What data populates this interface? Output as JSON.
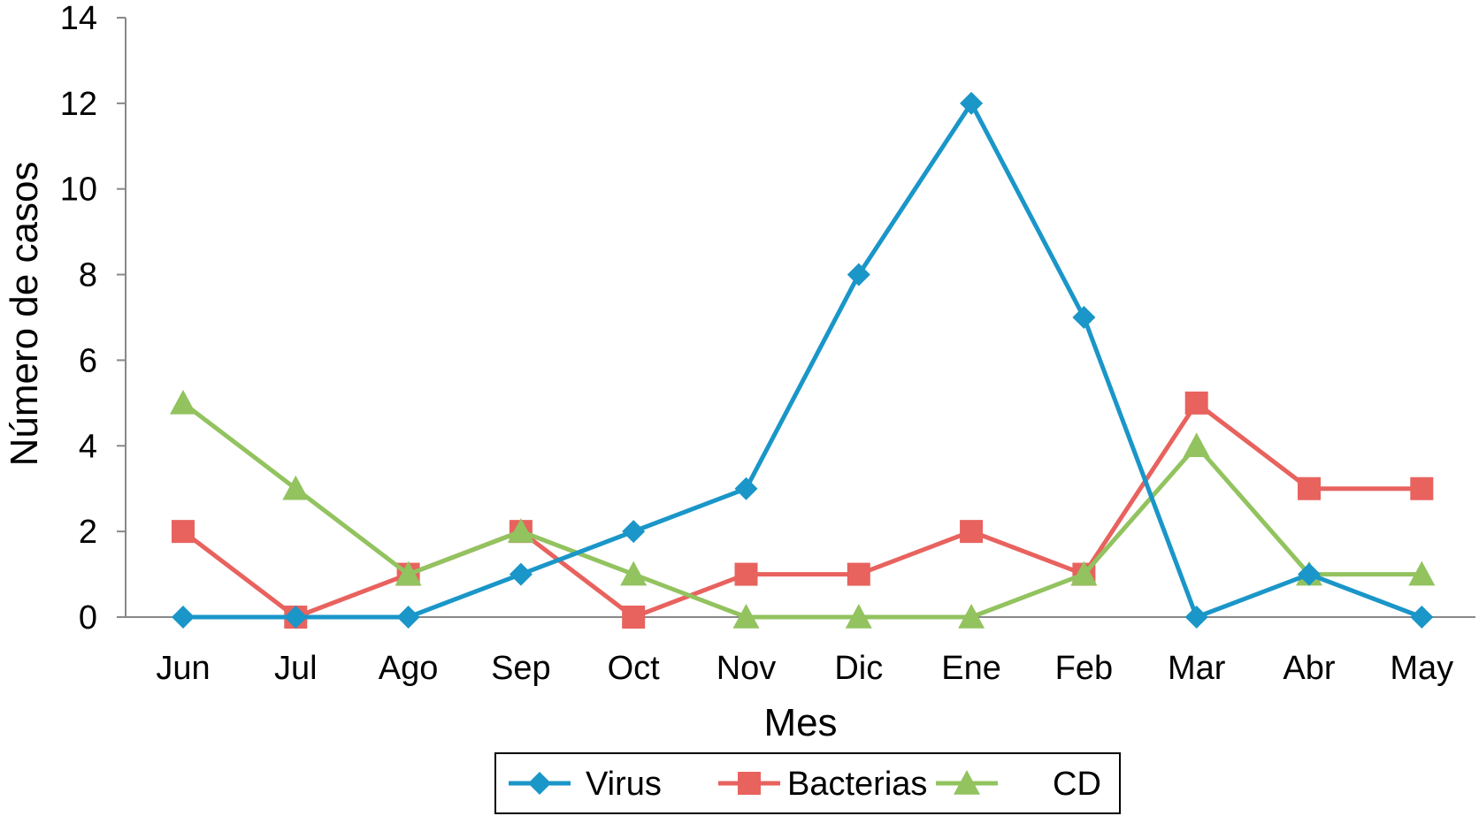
{
  "chart_data": {
    "type": "line",
    "categories": [
      "Jun",
      "Jul",
      "Ago",
      "Sep",
      "Oct",
      "Nov",
      "Dic",
      "Ene",
      "Feb",
      "Mar",
      "Abr",
      "May"
    ],
    "series": [
      {
        "name": "Virus",
        "color": "#1a96c8",
        "marker": "diamond",
        "values": [
          0,
          0,
          0,
          1,
          2,
          3,
          8,
          12,
          7,
          0,
          1,
          0
        ]
      },
      {
        "name": "Bacterias",
        "color": "#e8625e",
        "marker": "square",
        "values": [
          2,
          0,
          1,
          2,
          0,
          1,
          1,
          2,
          1,
          5,
          3,
          3
        ]
      },
      {
        "name": "CD",
        "color": "#92c35f",
        "marker": "triangle",
        "values": [
          5,
          3,
          1,
          2,
          1,
          0,
          0,
          0,
          1,
          4,
          1,
          1
        ]
      }
    ],
    "xlabel": "Mes",
    "ylabel": "Número de casos",
    "ylim": [
      0,
      14
    ],
    "yticks": [
      "0",
      "2",
      "4",
      "6",
      "8",
      "10",
      "12",
      "14"
    ],
    "grid": false,
    "legend": "bottom"
  }
}
